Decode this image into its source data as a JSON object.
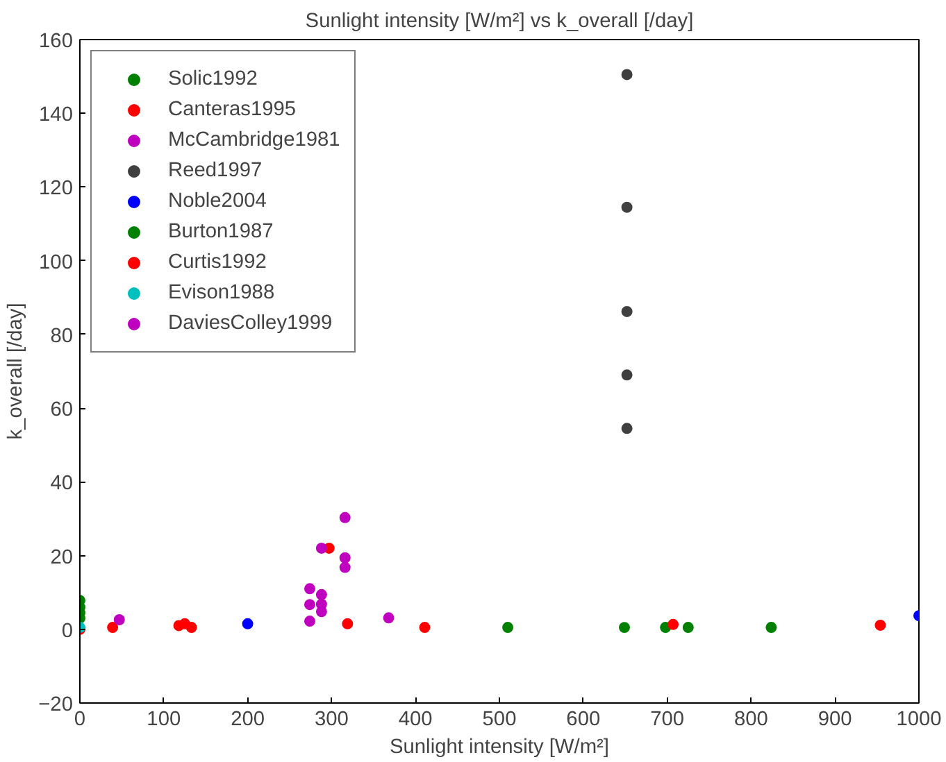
{
  "chart_data": {
    "type": "scatter",
    "title": "Sunlight intensity [W/m²] vs k_overall [/day]",
    "xlabel": "Sunlight intensity [W/m²]",
    "ylabel": "k_overall [/day]",
    "xlim": [
      0,
      1000
    ],
    "ylim": [
      -20,
      160
    ],
    "xticks": [
      0,
      100,
      200,
      300,
      400,
      500,
      600,
      700,
      800,
      900,
      1000
    ],
    "yticks": [
      -20,
      0,
      20,
      40,
      60,
      80,
      100,
      120,
      140,
      160
    ],
    "grid": false,
    "legend": "top left",
    "marker": "circle",
    "series": [
      {
        "name": "Solic1992",
        "color": "#008000",
        "x": [
          0,
          0,
          0,
          0
        ],
        "values": [
          7.8,
          6,
          4.5,
          3
        ]
      },
      {
        "name": "Canteras1995",
        "color": "#ff0000",
        "x": [
          0,
          39,
          118,
          125,
          133
        ],
        "values": [
          0,
          0.5,
          1,
          1.5,
          0.5
        ]
      },
      {
        "name": "McCambridge1981",
        "color": "#bf00bf",
        "x": [
          47,
          368
        ],
        "values": [
          2.6,
          3.1
        ]
      },
      {
        "name": "Reed1997",
        "color": "#404040",
        "x": [
          652,
          652,
          652,
          652,
          652
        ],
        "values": [
          150.5,
          114.5,
          86.2,
          69,
          54.5
        ]
      },
      {
        "name": "Noble2004",
        "color": "#0000ff",
        "x": [
          200,
          1000
        ],
        "values": [
          1.5,
          3.7
        ]
      },
      {
        "name": "Burton1987",
        "color": "#008000",
        "x": [
          510,
          649,
          698,
          725,
          824
        ],
        "values": [
          0.5,
          0.5,
          0.5,
          0.5,
          0.5
        ]
      },
      {
        "name": "Curtis1992",
        "color": "#ff0000",
        "x": [
          297,
          319,
          411,
          707,
          954
        ],
        "values": [
          22,
          1.5,
          0.5,
          1.3,
          1.1
        ]
      },
      {
        "name": "Evison1988",
        "color": "#00bfbf",
        "x": [
          0
        ],
        "values": [
          0.5
        ]
      },
      {
        "name": "DaviesColley1999",
        "color": "#bf00bf",
        "x": [
          288,
          316,
          316,
          316,
          274,
          274,
          274,
          288,
          288,
          288
        ],
        "values": [
          22,
          30.3,
          19.4,
          16.8,
          11,
          6.7,
          2.2,
          9.4,
          6.8,
          4.8
        ]
      }
    ]
  }
}
